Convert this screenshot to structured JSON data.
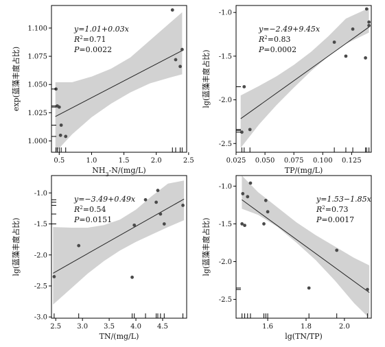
{
  "colors": {
    "band": "#d2d2d2",
    "line": "#222222",
    "point": "#4a4a4a",
    "frame": "#000000"
  },
  "chart_data": [
    {
      "type": "scatter",
      "xlabel": "NH3-N/(mg/L)",
      "xlabel_main": "NH",
      "xlabel_sub": "3",
      "xlabel_rest": "-N/(mg/L)",
      "ylabel": "exp(蓝藻丰度占比)",
      "xlim": [
        0.38,
        2.47
      ],
      "ylim": [
        0.99,
        1.12
      ],
      "xticks": [
        0.5,
        1.0,
        1.5,
        2.0,
        2.5
      ],
      "xtick_labels": [
        "0.5",
        "1.0",
        "1.5",
        "2.0",
        "2.5"
      ],
      "yticks": [
        1.0,
        1.025,
        1.05,
        1.075,
        1.1
      ],
      "ytick_labels": [
        "1.000",
        "1.025",
        "1.050",
        "1.075",
        "1.100"
      ],
      "equation": {
        "y": "y=1.01+0.03x",
        "r2_label": "R",
        "r2_sup": "2",
        "r2_value": "=0.71",
        "p_label": "P",
        "p_value": "=0.0022"
      },
      "annotation_pos": "top-left",
      "fit": {
        "intercept": 1.0085,
        "slope": 0.0298
      },
      "band": {
        "x": [
          0.44,
          0.7,
          1.0,
          1.3,
          1.6,
          1.9,
          2.2,
          2.4
        ],
        "lower": [
          0.99,
          1.006,
          1.021,
          1.033,
          1.043,
          1.051,
          1.056,
          1.059
        ],
        "upper": [
          1.052,
          1.052,
          1.057,
          1.064,
          1.074,
          1.089,
          1.104,
          1.114
        ]
      },
      "points": {
        "x": [
          0.45,
          0.47,
          0.5,
          0.53,
          0.6,
          2.25,
          2.3,
          2.37,
          2.4
        ],
        "y": [
          1.046,
          1.031,
          1.03,
          1.014,
          1.004,
          1.116,
          1.072,
          1.066,
          1.081
        ]
      },
      "points2": {
        "x": [
          0.52
        ],
        "y": [
          1.005
        ]
      },
      "rug": [
        0.45,
        0.47,
        0.5,
        0.53,
        0.6,
        2.25,
        2.3,
        2.37,
        2.4
      ],
      "rugy": [
        1.046,
        1.031,
        1.03,
        1.014,
        1.004
      ]
    },
    {
      "type": "scatter",
      "xlabel": "TP/(mg/L)",
      "ylabel": "lg(蓝藻丰度占比)",
      "xlim": [
        0.025,
        0.142
      ],
      "ylim": [
        -2.6,
        -0.92
      ],
      "xticks": [
        0.025,
        0.05,
        0.075,
        0.1,
        0.125
      ],
      "xtick_labels": [
        "0.025",
        "0.050",
        "0.075",
        "0.100",
        "0.125"
      ],
      "yticks": [
        -2.5,
        -2.0,
        -1.5,
        -1.0
      ],
      "ytick_labels": [
        "-2.5",
        "-2.0",
        "-1.5",
        "-1.0"
      ],
      "equation": {
        "y": "y=−2.49+9.45x",
        "r2_label": "R",
        "r2_sup": "2",
        "r2_value": "=0.83",
        "p_label": "P",
        "p_value": "=0.0002"
      },
      "annotation_pos": "top-left",
      "fit": {
        "intercept": -2.49,
        "slope": 9.45
      },
      "band": {
        "x": [
          0.029,
          0.045,
          0.06,
          0.075,
          0.09,
          0.105,
          0.12,
          0.14
        ],
        "lower": [
          -2.55,
          -2.28,
          -2.06,
          -1.86,
          -1.67,
          -1.5,
          -1.36,
          -1.23
        ],
        "upper": [
          -1.95,
          -1.84,
          -1.73,
          -1.6,
          -1.45,
          -1.27,
          -1.07,
          -0.95
        ]
      },
      "points": {
        "x": [
          0.03,
          0.032,
          0.037,
          0.11,
          0.12,
          0.126,
          0.137,
          0.138,
          0.14,
          0.14
        ],
        "y": [
          -2.37,
          -1.85,
          -2.34,
          -1.34,
          -1.5,
          -1.19,
          -1.52,
          -0.96,
          -1.11,
          -1.15
        ]
      },
      "rug": [
        0.03,
        0.032,
        0.037,
        0.11,
        0.12,
        0.126,
        0.137,
        0.138,
        0.14
      ],
      "rugy": [
        -2.37,
        -2.34,
        -2.35,
        -1.85
      ]
    },
    {
      "type": "scatter",
      "xlabel": "TN/(mg/L)",
      "ylabel": "lg(蓝藻丰度占比)",
      "xlim": [
        2.42,
        4.95
      ],
      "ylim": [
        -3.02,
        -0.72
      ],
      "xticks": [
        2.5,
        3.0,
        3.5,
        4.0,
        4.5
      ],
      "xtick_labels": [
        "2.5",
        "3.0",
        "3.5",
        "4.0",
        "4.5"
      ],
      "yticks": [
        -3.0,
        -2.5,
        -2.0,
        -1.5,
        -1.0
      ],
      "ytick_labels": [
        "-3.0",
        "-2.5",
        "-2.0",
        "-1.5",
        "-1.0"
      ],
      "equation": {
        "y": "y=−3.49+0.49x",
        "r2_label": "R",
        "r2_sup": "2",
        "r2_value": "=0.54",
        "p_label": "P",
        "p_value": "=0.0151"
      },
      "annotation_pos": "top-left",
      "fit": {
        "intercept": -3.49,
        "slope": 0.488
      },
      "band": {
        "x": [
          2.45,
          2.8,
          3.1,
          3.4,
          3.7,
          4.0,
          4.3,
          4.6,
          4.9
        ],
        "lower": [
          -2.8,
          -2.53,
          -2.3,
          -2.1,
          -1.93,
          -1.79,
          -1.67,
          -1.55,
          -1.44
        ],
        "upper": [
          -1.55,
          -1.56,
          -1.56,
          -1.52,
          -1.43,
          -1.27,
          -1.05,
          -0.85,
          -0.8
        ]
      },
      "points": {
        "x": [
          2.47,
          2.93,
          3.93,
          3.97,
          4.18,
          4.38,
          4.41,
          4.46,
          4.53,
          4.88
        ],
        "y": [
          -2.35,
          -1.85,
          -2.36,
          -1.52,
          -1.11,
          -1.15,
          -0.96,
          -1.34,
          -1.5,
          -1.2
        ]
      },
      "rug": [
        2.47,
        2.93,
        3.93,
        3.97,
        4.18,
        4.38,
        4.41,
        4.46,
        4.53,
        4.88
      ],
      "rugy": [
        -1.11,
        -1.15,
        -1.2,
        -1.34,
        -1.5
      ]
    },
    {
      "type": "scatter",
      "xlabel": "lg(TN/TP)",
      "ylabel": "lg(蓝藻丰度占比)",
      "xlim": [
        1.435,
        2.14
      ],
      "ylim": [
        -2.75,
        -0.86
      ],
      "xticks": [
        1.6,
        1.8,
        2.0
      ],
      "xtick_labels": [
        "1.6",
        "1.8",
        "2.0"
      ],
      "yticks": [
        -2.5,
        -2.0,
        -1.5,
        -1.0
      ],
      "ytick_labels": [
        "-2.5",
        "-2.0",
        "-1.5",
        "-1.0"
      ],
      "equation": {
        "y": "y=1.53−1.85x",
        "r2_label": "R",
        "r2_sup": "2",
        "r2_value": "=0.73",
        "p_label": "P",
        "p_value": "=0.0017"
      },
      "annotation_pos": "top-right",
      "fit": {
        "intercept": 1.53,
        "slope": -1.85
      },
      "band": {
        "x": [
          1.465,
          1.55,
          1.65,
          1.75,
          1.85,
          1.95,
          2.05,
          2.13
        ],
        "lower": [
          -1.3,
          -1.38,
          -1.54,
          -1.75,
          -1.98,
          -2.25,
          -2.55,
          -2.75
        ],
        "upper": [
          -0.86,
          -1.08,
          -1.28,
          -1.48,
          -1.65,
          -1.8,
          -1.95,
          -2.05
        ]
      },
      "points": {
        "x": [
          1.466,
          1.47,
          1.48,
          1.495,
          1.51,
          1.58,
          1.59,
          1.6,
          1.815,
          1.96,
          2.12
        ],
        "y": [
          -1.5,
          -1.1,
          -1.52,
          -1.14,
          -0.96,
          -1.5,
          -1.19,
          -1.34,
          -2.35,
          -1.85,
          -2.37
        ]
      },
      "rug": [
        1.466,
        1.48,
        1.495,
        1.51,
        1.58,
        1.59,
        1.6,
        1.815,
        1.96,
        2.12
      ],
      "rugy": [
        -2.35,
        -2.37
      ]
    }
  ]
}
